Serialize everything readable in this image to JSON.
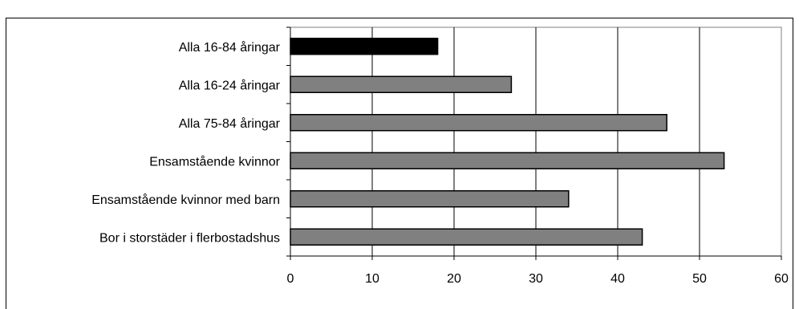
{
  "chart_data": {
    "type": "bar",
    "orientation": "horizontal",
    "title": "",
    "xlabel": "",
    "ylabel": "",
    "categories": [
      "Alla 16-84 åringar",
      "Alla 16-24 åringar",
      "Alla 75-84 åringar",
      "Ensamstående kvinnor",
      "Ensamstående kvinnor med barn",
      "Bor i storstäder i flerbostadshus"
    ],
    "values": [
      18,
      27,
      46,
      53,
      34,
      43
    ],
    "bar_colors": [
      "#000000",
      "#808080",
      "#808080",
      "#808080",
      "#808080",
      "#808080"
    ],
    "xlim": [
      0,
      60
    ],
    "x_ticks": [
      0,
      10,
      20,
      30,
      40,
      50,
      60
    ],
    "grid": "vertical",
    "legend": "none"
  }
}
